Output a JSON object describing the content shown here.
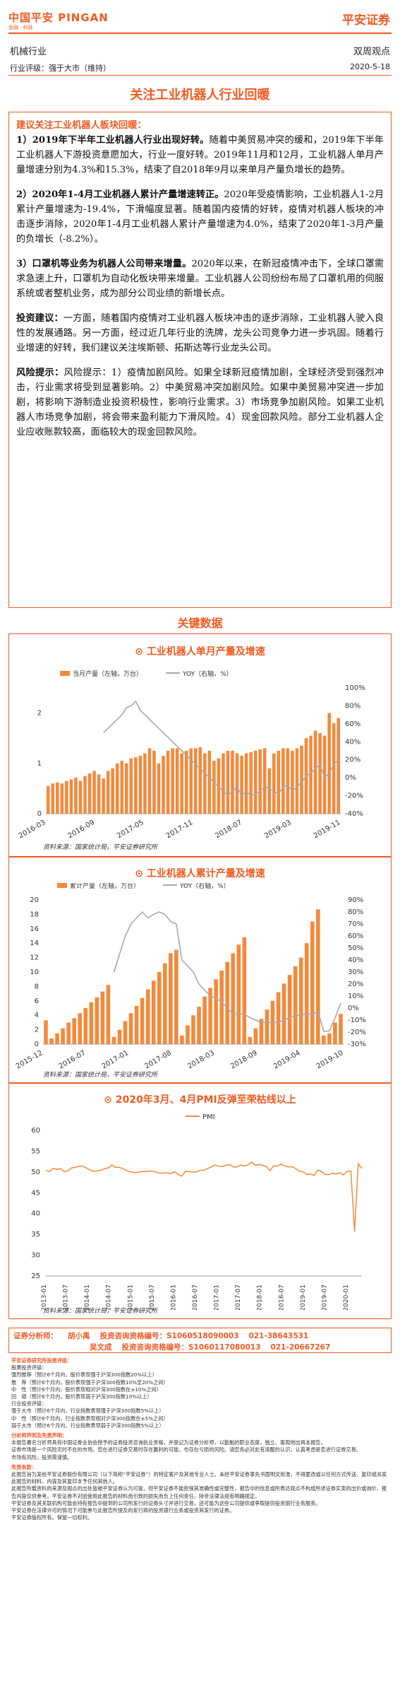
{
  "header": {
    "logo": "中国平安 PINGAN",
    "logo_sub": "金融 · 科技",
    "brand": "平安证券",
    "industry": "机械行业",
    "report_type": "双周观点",
    "rating": "行业评级：强于大市（维持）",
    "date": "2020-5-18"
  },
  "title": "关注工业机器人行业回暖",
  "summary": {
    "lead": "建议关注工业机器人板块回暖：",
    "p1_head": "1）2019年下半年工业机器人行业出现好转。",
    "p1_body": "随着中美贸易冲突的缓和，2019年下半年工业机器人下游投资意愿加大，行业一度好转。2019年11月和12月，工业机器人单月产量增速分别为4.3%和15.3%，结束了自2018年9月以来单月产量负增长的趋势。",
    "p2_head": "2）2020年1-4月工业机器人累计产量增速转正。",
    "p2_body": "2020年受疫情影响，工业机器人1-2月累计产量增速为-19.4%，下滑幅度显著。随着国内疫情的好转，疫情对机器人板块的冲击逐步消除，2020年1-4月工业机器人累计产量增速为4.0%，结束了2020年1-3月产量的负增长（-8.2%）。",
    "p3_head": "3）口罩机等业务为机器人公司带来增量。",
    "p3_body": "2020年以来，在新冠疫情冲击下，全球口罩需求急速上升，口罩机为自动化板块带来增量。工业机器人公司纷纷布局了口罩机用的伺服系统或者整机业务，成为部分公司业绩的新增长点。",
    "p4_head": "投资建议：",
    "p4_body": "一方面，随着国内疫情对工业机器人板块冲击的逐步消除，工业机器人驶入良性的发展通路。另一方面，经过近几年行业的洗牌，龙头公司竞争力进一步巩固。随着行业增速的好转，我们建议关注埃斯顿、拓斯达等行业龙头公司。",
    "p5_head": "风险提示：",
    "p5_body": "风险提示：1）疫情加剧风险。如果全球新冠疫情加剧，全球经济受到强烈冲击，行业需求将受到显著影响。2）中美贸易冲突加剧风险。如果中美贸易冲突进一步加剧，将影响下游制造业投资积极性，影响行业需求。3）市场竞争加剧风险。如果工业机器人市场竞争加剧，将会带来盈利能力下滑风险。4）现金回款风险。部分工业机器人企业应收账款较高，面临较大的现金回款风险。"
  },
  "section_title": "关键数据",
  "chart1_title": "工业机器人单月产量及增速",
  "chart2_title": "工业机器人累计产量及增速",
  "chart3_title": "2020年3月、4月PMI反弹至荣枯线以上",
  "source_text": "资料来源：国家统计局，平安证券研究所",
  "analysts": {
    "label": "证券分析师：",
    "a1_name": "胡小禹",
    "a1_id": "投资咨询资格编号：S1060518090003",
    "a1_phone": "021-38643531",
    "a2_name": "吴文成",
    "a2_id": "投资咨询资格编号：S1060117080013",
    "a2_phone": "021-20667267"
  },
  "disclaimer": {
    "h1": "平安证券研究所投资评级：",
    "lines1": [
      "股票投资评级：",
      "强烈推荐（预计6个月内，股价表现强于沪深300指数20%以上）",
      "推　荐（预计6个月内，股价表现强于沪深300指数10%至20%之间）",
      "中　性（预计6个月内，股价表现相对沪深300指数在±10%之间）",
      "回　避（预计6个月内，股价表现弱于沪深300指数10%以上）",
      "行业投资评级：",
      "强于大市（预计6个月内，行业指数表现强于沪深300指数5%以上）",
      "中　性（预计6个月内，行业指数表现相对沪深300指数在±5%之间）",
      "弱于大市（预计6个月内，行业指数表现弱于沪深300指数5%以上）"
    ],
    "h2": "分析师声明及免责声明：",
    "lines2": [
      "本报告署名分析师具有中国证券业协会授予的证券投资咨询执业资格，并登记为证券分析师，以勤勉的职业态度，独立、客观地出具本报告。",
      "证券市场是一个风险无时不在的市场。您在进行证券交易时存在赢利的可能，也存在亏损的风险。请您务必对此有清醒的认识，认真考虑是否进行证券交易。",
      "市场有风险，投资需谨慎。"
    ],
    "h3": "免责条款：",
    "lines3": [
      "此报告旨为发给平安证券股份有限公司（以下简称“平安证券”）的特定客户及其他专业人士。未经平安证券事先书面明文批准，不得更改或以任何方式传送、复印或派发此报告的材料、内容及其复印本予任何其他人。",
      "此报告所载资料的来源及观点的出处皆被平安证券认为可靠，但平安证券不能担保其准确性或完整性，报告中的信息或所表达观点不构成所述证券买卖的出价或询价，报告内容仅供参考。平安证券不对因使用此报告的材料而引致的损失而负上任何责任，除非法律法规有明确规定。",
      "平安证券及其关联机构可能会持有报告中提到的公司所发行的证券头寸并进行交易，还可能为这些公司提供或争取提供投资银行业务服务。",
      "平安证券在法律许可的情况下可能参与此报告所提及的发行商的投资银行业务或投资其发行的证券。",
      "平安证券版权所有。保留一切权利。"
    ]
  },
  "chart_data": [
    {
      "type": "bar",
      "title": "工业机器人单月产量及增速",
      "series": [
        {
          "name": "当月产量（左轴，万台）",
          "type": "bar"
        },
        {
          "name": "YOY（右轴，%）",
          "type": "line"
        }
      ],
      "x_ticks": [
        "2016-03",
        "2016-09",
        "2017-05",
        "2017-11",
        "2018-07",
        "2019-03",
        "2019-11"
      ],
      "yleft": [
        0,
        2.5
      ],
      "yright": [
        -40,
        100
      ],
      "yleft_ticks": [
        "0",
        "1",
        "2"
      ],
      "yright_ticks": [
        "-40%",
        "-20%",
        "0%",
        "20%",
        "40%",
        "60%",
        "80%",
        "100%"
      ],
      "bars": [
        0.55,
        0.6,
        0.62,
        0.6,
        0.65,
        0.68,
        0.72,
        0.65,
        0.75,
        0.8,
        0.85,
        0.78,
        0.7,
        0.85,
        0.9,
        1.0,
        1.05,
        1.0,
        1.1,
        1.12,
        1.15,
        1.2,
        1.3,
        1.25,
        1.0,
        1.15,
        1.25,
        1.3,
        1.3,
        1.2,
        1.25,
        1.3,
        1.3,
        1.32,
        1.2,
        1.25,
        1.05,
        1.1,
        1.2,
        1.25,
        1.25,
        1.2,
        1.15,
        1.2,
        1.22,
        1.25,
        1.28,
        1.3,
        0.9,
        1.2,
        1.25,
        1.3,
        1.3,
        1.25,
        1.3,
        1.35,
        1.5,
        1.55,
        1.65,
        1.6,
        1.55,
        2.0,
        1.8,
        1.9
      ],
      "yoy": [
        null,
        null,
        null,
        null,
        null,
        null,
        null,
        null,
        null,
        null,
        null,
        null,
        50,
        55,
        60,
        65,
        70,
        78,
        80,
        85,
        75,
        70,
        65,
        60,
        55,
        50,
        45,
        40,
        35,
        30,
        25,
        20,
        15,
        10,
        5,
        0,
        -5,
        -10,
        -15,
        -20,
        -15,
        -10,
        -20,
        -15,
        -20,
        -18,
        -15,
        -10,
        -12,
        -15,
        -18,
        -10,
        -8,
        -15,
        -10,
        -5,
        2,
        5,
        10,
        15,
        0,
        5,
        15,
        20
      ]
    },
    {
      "type": "bar",
      "title": "工业机器人累计产量及增速",
      "series": [
        {
          "name": "累计产量（左轴，万台）",
          "type": "bar"
        },
        {
          "name": "YOY（右轴，%）",
          "type": "line"
        }
      ],
      "x_ticks": [
        "2015-12",
        "2016-07",
        "2017-01",
        "2017-08",
        "2018-03",
        "2018-09",
        "2019-04",
        "2019-10"
      ],
      "yleft": [
        0,
        20
      ],
      "yright": [
        -30,
        90
      ],
      "yleft_ticks": [
        "0",
        "2",
        "4",
        "6",
        "8",
        "10",
        "12",
        "14",
        "16",
        "18",
        "20"
      ],
      "yright_ticks": [
        "-30%",
        "-20%",
        "-10%",
        "0%",
        "10%",
        "20%",
        "30%",
        "40%",
        "50%",
        "60%",
        "70%",
        "80%",
        "90%"
      ],
      "bars": [
        3.3,
        0.8,
        1.5,
        2.2,
        3.0,
        3.6,
        4.3,
        5.0,
        5.8,
        6.5,
        7.3,
        8.2,
        1.0,
        2.0,
        3.2,
        4.3,
        5.3,
        6.4,
        7.6,
        8.8,
        10.0,
        11.2,
        12.6,
        13.1,
        1.2,
        2.6,
        4.0,
        5.2,
        6.6,
        7.8,
        9.0,
        10.2,
        11.4,
        12.6,
        13.8,
        14.8,
        1.0,
        2.2,
        3.5,
        4.8,
        6.0,
        7.2,
        8.4,
        9.6,
        10.8,
        12.0,
        14.0,
        17.0,
        18.7,
        1.2,
        1.5,
        3.0,
        4.2
      ],
      "yoy": [
        null,
        null,
        null,
        null,
        null,
        null,
        null,
        null,
        null,
        null,
        null,
        null,
        30,
        45,
        60,
        70,
        75,
        80,
        75,
        78,
        80,
        78,
        72,
        70,
        40,
        35,
        30,
        20,
        15,
        10,
        8,
        5,
        0,
        -5,
        -5,
        -5,
        -8,
        -10,
        -12,
        -12,
        -12,
        -12,
        -10,
        -8,
        -6,
        -6,
        -5,
        -5,
        -3,
        -19.4,
        -19,
        -8.2,
        4
      ]
    },
    {
      "type": "line",
      "title": "2020年3月、4月PMI反弹至荣枯线以上",
      "series": [
        {
          "name": "PMI"
        }
      ],
      "ylim": [
        25,
        60
      ],
      "y_ticks": [
        "25",
        "30",
        "35",
        "40",
        "45",
        "50",
        "55",
        "60"
      ],
      "x_ticks": [
        "2013-01",
        "2013-07",
        "2014-01",
        "2014-07",
        "2015-01",
        "2015-07",
        "2016-01",
        "2016-07",
        "2017-01",
        "2017-07",
        "2018-01",
        "2018-07",
        "2019-01",
        "2019-07",
        "2020-01"
      ],
      "values": [
        50.4,
        50.1,
        50.9,
        50.6,
        50.8,
        50.1,
        50.3,
        51.0,
        51.1,
        51.4,
        51.4,
        51.0,
        50.5,
        50.2,
        50.3,
        50.4,
        50.8,
        51.0,
        51.7,
        51.1,
        51.1,
        50.8,
        50.3,
        50.1,
        49.8,
        49.9,
        50.1,
        50.1,
        50.2,
        50.2,
        50.0,
        49.7,
        49.8,
        49.8,
        49.6,
        50.1,
        49.4,
        49.0,
        50.2,
        50.1,
        50.0,
        50.0,
        50.4,
        50.4,
        50.8,
        51.2,
        51.7,
        51.4,
        51.3,
        51.6,
        51.8,
        51.2,
        51.2,
        51.7,
        51.4,
        51.7,
        52.4,
        51.6,
        51.8,
        51.6,
        51.3,
        50.3,
        51.5,
        51.4,
        51.9,
        51.5,
        51.2,
        51.3,
        50.8,
        50.2,
        50.0,
        49.4,
        49.5,
        49.2,
        50.5,
        50.1,
        49.4,
        49.4,
        49.7,
        49.5,
        49.8,
        49.3,
        50.2,
        50.2,
        35.7,
        52.0,
        50.8
      ]
    }
  ]
}
